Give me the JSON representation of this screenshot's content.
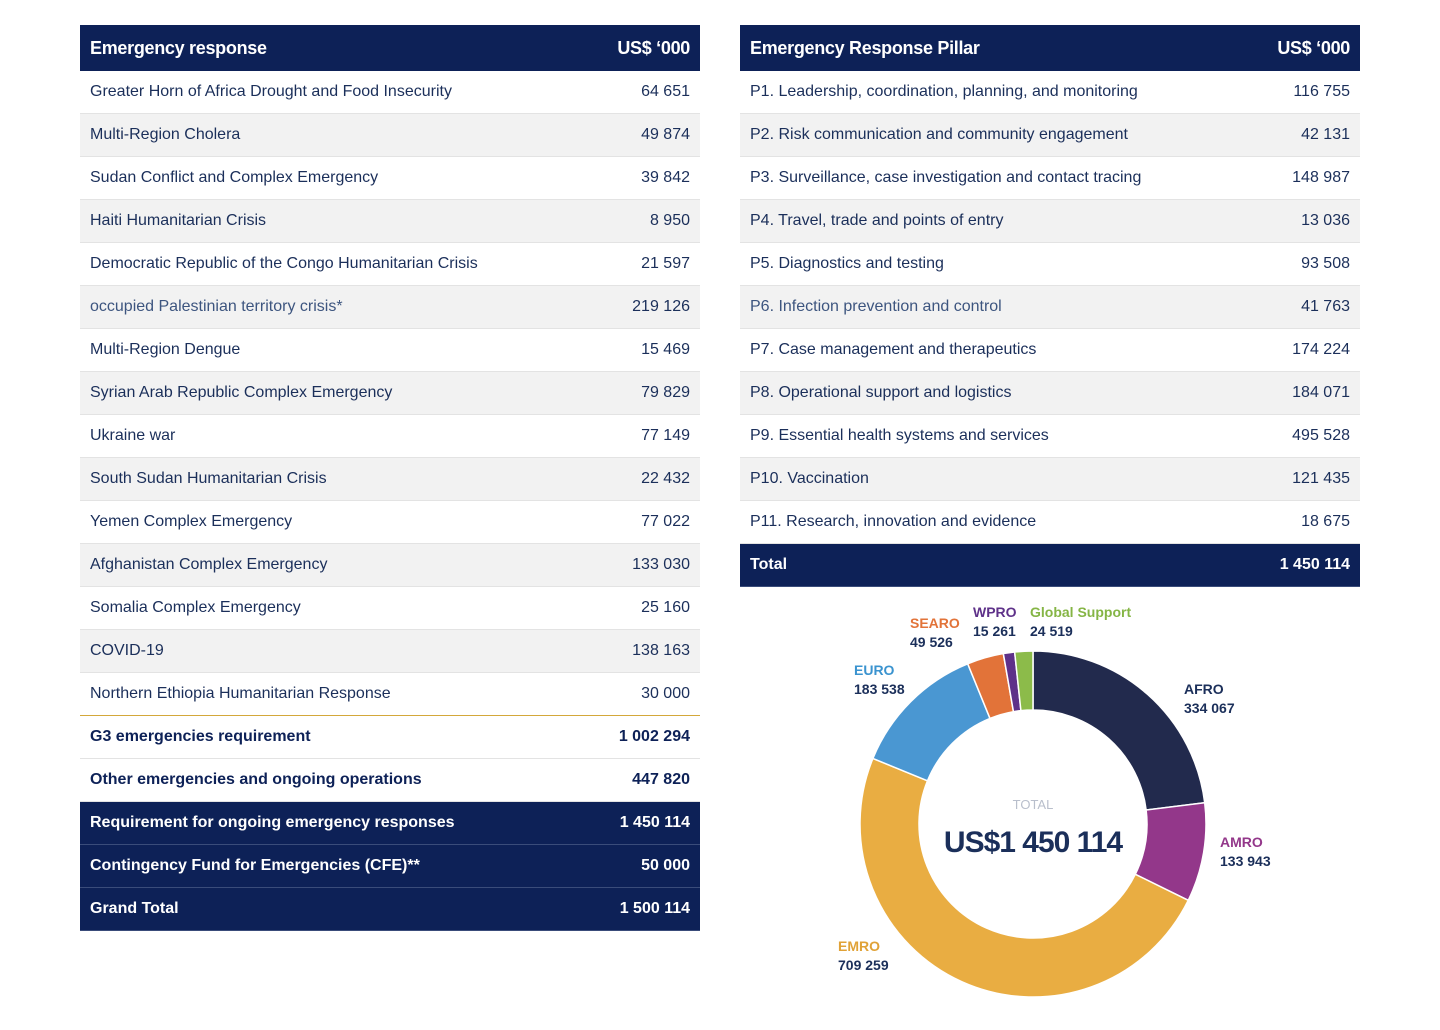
{
  "emergency_table": {
    "header_label": "Emergency response",
    "header_value": "US$ ‘000",
    "rows": [
      {
        "label": "Greater Horn of Africa Drought and Food Insecurity",
        "value": "64 651"
      },
      {
        "label": "Multi-Region Cholera",
        "value": "49 874"
      },
      {
        "label": "Sudan Conflict and Complex Emergency",
        "value": "39 842"
      },
      {
        "label": "Haiti Humanitarian Crisis",
        "value": "8 950"
      },
      {
        "label": "Democratic Republic of the Congo Humanitarian Crisis",
        "value": "21 597"
      },
      {
        "label": "occupied Palestinian territory crisis*",
        "value": "219 126"
      },
      {
        "label": "Multi-Region Dengue",
        "value": "15 469"
      },
      {
        "label": "Syrian Arab Republic Complex Emergency",
        "value": "79 829"
      },
      {
        "label": "Ukraine war",
        "value": "77 149"
      },
      {
        "label": "South Sudan Humanitarian Crisis",
        "value": "22 432"
      },
      {
        "label": "Yemen Complex Emergency",
        "value": "77 022"
      },
      {
        "label": "Afghanistan Complex Emergency",
        "value": "133 030"
      },
      {
        "label": "Somalia Complex Emergency",
        "value": "25 160"
      },
      {
        "label": "COVID-19",
        "value": "138 163"
      },
      {
        "label": "Northern Ethiopia Humanitarian Response",
        "value": "30 000"
      }
    ],
    "summary_rows": [
      {
        "label": "G3 emergencies requirement",
        "value": "1 002 294"
      },
      {
        "label": "Other emergencies and ongoing operations",
        "value": "447 820"
      }
    ],
    "total_rows": [
      {
        "label": "Requirement for ongoing emergency responses",
        "value": "1 450 114"
      },
      {
        "label": "Contingency Fund for Emergencies (CFE)**",
        "value": "50 000"
      },
      {
        "label": "Grand Total",
        "value": "1 500 114"
      }
    ]
  },
  "pillar_table": {
    "header_label": "Emergency Response Pillar",
    "header_value": "US$ ‘000",
    "rows": [
      {
        "label": "P1. Leadership, coordination, planning, and monitoring",
        "value": "116 755"
      },
      {
        "label": "P2. Risk communication and community engagement",
        "value": "42 131"
      },
      {
        "label": "P3. Surveillance, case investigation and contact tracing",
        "value": "148 987"
      },
      {
        "label": "P4. Travel, trade and points of entry",
        "value": "13 036"
      },
      {
        "label": "P5. Diagnostics and testing",
        "value": "93 508"
      },
      {
        "label": "P6. Infection prevention and control",
        "value": "41 763"
      },
      {
        "label": "P7. Case management and therapeutics",
        "value": "174 224"
      },
      {
        "label": "P8. Operational support and logistics",
        "value": "184 071"
      },
      {
        "label": "P9. Essential health systems and services",
        "value": "495 528"
      },
      {
        "label": "P10. Vaccination",
        "value": "121 435"
      },
      {
        "label": "P11. Research, innovation and evidence",
        "value": "18 675"
      }
    ],
    "total": {
      "label": "Total",
      "value": "1 450 114"
    }
  },
  "chart_data": {
    "type": "pie",
    "variant": "donut",
    "center_caption": "TOTAL",
    "center_value": "US$1 450 114",
    "categories": [
      "AFRO",
      "AMRO",
      "EMRO",
      "EURO",
      "SEARO",
      "WPRO",
      "Global Support"
    ],
    "values": [
      334067,
      133943,
      709259,
      183538,
      49526,
      15261,
      24519
    ],
    "value_labels": [
      "334 067",
      "133 943",
      "709 259",
      "183 538",
      "49 526",
      "15 261",
      "24 519"
    ],
    "colors": [
      "#222a4d",
      "#93378a",
      "#e9ad42",
      "#4a97d2",
      "#e27339",
      "#5e3189",
      "#8cbb4a"
    ],
    "label_colors": [
      "#1b2f5a",
      "#93378a",
      "#e0a237",
      "#3a93cf",
      "#e27339",
      "#5e3189",
      "#85b545"
    ],
    "start": "12 o'clock",
    "direction": "clockwise"
  }
}
